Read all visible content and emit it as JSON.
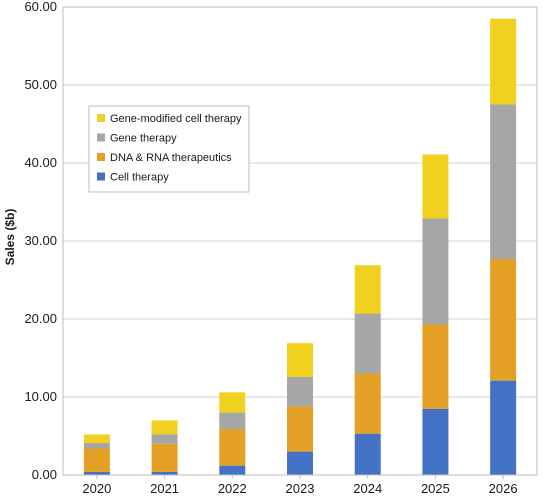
{
  "chart_data": {
    "type": "bar",
    "stacked": true,
    "categories": [
      "2020",
      "2021",
      "2022",
      "2023",
      "2024",
      "2025",
      "2026"
    ],
    "series": [
      {
        "name": "Cell therapy",
        "color": "#4472c4",
        "values": [
          0.4,
          0.4,
          1.2,
          3.0,
          5.3,
          8.5,
          12.1
        ]
      },
      {
        "name": "DNA & RNA therapeutics",
        "color": "#e4a025",
        "values": [
          3.0,
          3.6,
          4.7,
          5.8,
          7.7,
          10.8,
          15.6
        ]
      },
      {
        "name": "Gene therapy",
        "color": "#a6a6a6",
        "values": [
          0.7,
          1.2,
          2.1,
          3.8,
          7.7,
          13.6,
          19.8
        ]
      },
      {
        "name": "Gene-modified cell therapy",
        "color": "#f1d11f",
        "values": [
          1.1,
          1.8,
          2.6,
          4.3,
          6.2,
          8.2,
          11.0
        ]
      }
    ],
    "ylabel": "Sales ($b)",
    "ylim": [
      0,
      60
    ],
    "yticks": [
      "0.00",
      "10.00",
      "20.00",
      "30.00",
      "40.00",
      "50.00",
      "60.00"
    ],
    "grid": true,
    "legend_position": "top-left",
    "legend_order": [
      "Gene-modified cell therapy",
      "Gene therapy",
      "DNA & RNA therapeutics",
      "Cell therapy"
    ]
  }
}
